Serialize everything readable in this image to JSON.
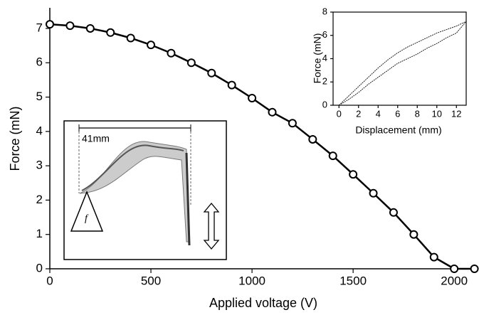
{
  "chart_data": [
    {
      "type": "line",
      "xlabel": "Applied voltage (V)",
      "ylabel": "Force (mN)",
      "x": [
        0,
        100,
        200,
        300,
        400,
        500,
        600,
        700,
        800,
        900,
        1000,
        1100,
        1200,
        1300,
        1400,
        1500,
        1600,
        1700,
        1800,
        1900,
        2000,
        2100
      ],
      "series": [
        {
          "color": "#000000",
          "marker": "circle",
          "values": [
            7.12,
            7.08,
            7.0,
            6.88,
            6.72,
            6.52,
            6.28,
            6.0,
            5.7,
            5.35,
            4.97,
            4.56,
            4.24,
            3.77,
            3.29,
            2.75,
            2.2,
            1.64,
            1.0,
            0.34,
            0,
            0
          ]
        }
      ],
      "xlim": [
        0,
        2105
      ],
      "xticks": [
        0,
        500,
        1000,
        1500,
        2000
      ],
      "ylim": [
        0,
        7.6
      ],
      "yticks": [
        0,
        1,
        2,
        3,
        4,
        5,
        6,
        7
      ]
    },
    {
      "type": "line",
      "xlabel": "Displacement (mm)",
      "ylabel": "Force (mN)",
      "x": [
        0,
        1,
        2,
        3,
        4,
        5,
        6,
        7,
        8,
        9,
        10,
        11,
        12,
        13
      ],
      "series": [
        {
          "color": "#222222",
          "marker": "none",
          "values": [
            0,
            0.8,
            1.6,
            2.4,
            3.2,
            3.9,
            4.5,
            5.0,
            5.4,
            5.8,
            6.2,
            6.5,
            6.8,
            7.2
          ]
        },
        {
          "color": "#222222",
          "marker": "none",
          "values": [
            0,
            0.5,
            1.1,
            1.8,
            2.4,
            3.0,
            3.6,
            4.0,
            4.4,
            4.9,
            5.3,
            5.8,
            6.2,
            7.2
          ]
        }
      ],
      "xlim": [
        -0.6,
        13
      ],
      "xticks": [
        0,
        2,
        4,
        6,
        8,
        10,
        12
      ],
      "ylim": [
        0,
        8
      ],
      "yticks": [
        0,
        2,
        4,
        6,
        8
      ]
    }
  ],
  "photo_inset": {
    "dimension": "41mm",
    "force_symbol": "f"
  }
}
